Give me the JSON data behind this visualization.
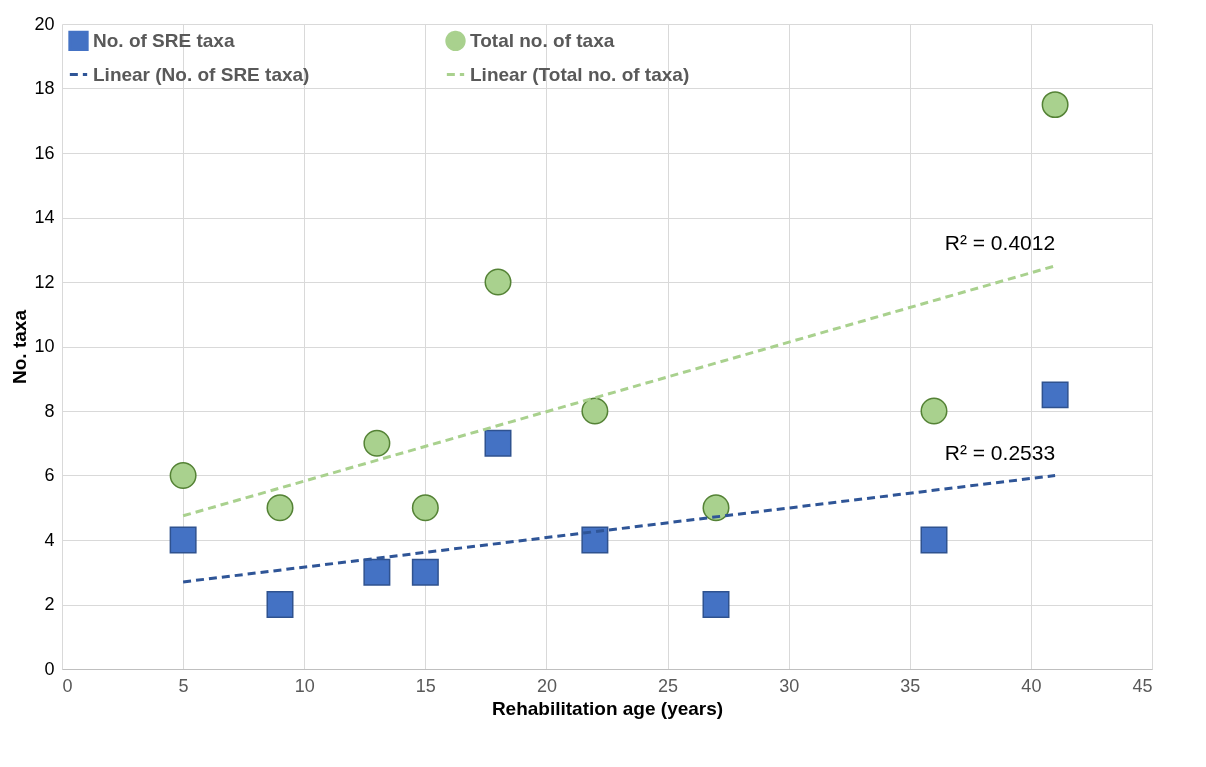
{
  "chart_data": {
    "type": "scatter",
    "xlabel": "Rehabilitation age (years)",
    "ylabel": "No. taxa",
    "xlim": [
      0,
      45
    ],
    "xticks": [
      0,
      5,
      10,
      15,
      20,
      25,
      30,
      35,
      40,
      45
    ],
    "ylim": [
      0,
      20
    ],
    "yticks": [
      0,
      2,
      4,
      6,
      8,
      10,
      12,
      14,
      16,
      18,
      20
    ],
    "grid": true,
    "legend": "top",
    "series": [
      {
        "name": "No. of SRE taxa",
        "marker": "square",
        "color": "#4472c4",
        "x": [
          5,
          9,
          13,
          15,
          18,
          22,
          27,
          36,
          41
        ],
        "values": [
          4,
          2,
          3,
          3,
          7,
          4,
          2,
          4,
          8.5
        ]
      },
      {
        "name": "Total no. of taxa",
        "marker": "circle",
        "color": "#a9d18e",
        "x": [
          5,
          9,
          13,
          15,
          18,
          22,
          27,
          36,
          41
        ],
        "values": [
          6,
          5,
          7,
          5,
          12,
          8,
          5,
          8,
          17.5
        ]
      },
      {
        "name": "Linear (No. of SRE taxa)",
        "type": "line",
        "line_style": "dashed",
        "color": "#2f5597",
        "x": [
          5,
          41
        ],
        "values": [
          2.7,
          6.0
        ]
      },
      {
        "name": "Linear (Total no. of taxa)",
        "type": "line",
        "line_style": "dashed",
        "color": "#a9d18e",
        "x": [
          5,
          41
        ],
        "values": [
          4.75,
          12.5
        ]
      }
    ],
    "annotations": [
      "R² = 0.4012",
      "R² = 0.2533"
    ]
  }
}
